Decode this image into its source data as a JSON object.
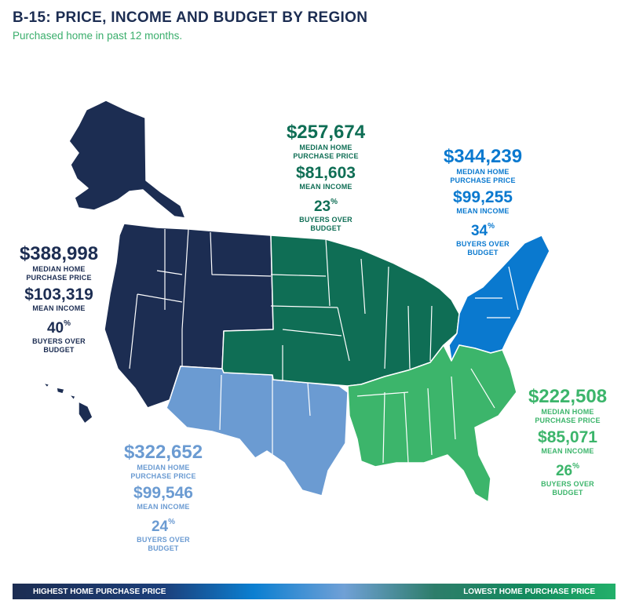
{
  "header": {
    "title": "B-15: PRICE, INCOME AND BUDGET BY REGION",
    "subtitle": "Purchased home in past 12 months."
  },
  "colors": {
    "west": "#1c2d52",
    "southwest": "#6b9bd2",
    "midwest": "#0f6e55",
    "northeast": "#0a79cf",
    "south": "#3cb56b",
    "title": "#1c2d52"
  },
  "regions": {
    "west": {
      "price": "$388,998",
      "price_label_1": "MEDIAN HOME",
      "price_label_2": "PURCHASE PRICE",
      "income": "$103,319",
      "income_label": "MEAN INCOME",
      "pct": "40",
      "pct_sign": "%",
      "pct_label_1": "BUYERS OVER",
      "pct_label_2": "BUDGET"
    },
    "midwest": {
      "price": "$257,674",
      "price_label_1": "MEDIAN HOME",
      "price_label_2": "PURCHASE PRICE",
      "income": "$81,603",
      "income_label": "MEAN INCOME",
      "pct": "23",
      "pct_sign": "%",
      "pct_label_1": "BUYERS OVER",
      "pct_label_2": "BUDGET"
    },
    "northeast": {
      "price": "$344,239",
      "price_label_1": "MEDIAN HOME",
      "price_label_2": "PURCHASE PRICE",
      "income": "$99,255",
      "income_label": "MEAN INCOME",
      "pct": "34",
      "pct_sign": "%",
      "pct_label_1": "BUYERS OVER",
      "pct_label_2": "BUDGET"
    },
    "southwest": {
      "price": "$322,652",
      "price_label_1": "MEDIAN HOME",
      "price_label_2": "PURCHASE PRICE",
      "income": "$99,546",
      "income_label": "MEAN INCOME",
      "pct": "24",
      "pct_sign": "%",
      "pct_label_1": "BUYERS OVER",
      "pct_label_2": "BUDGET"
    },
    "south": {
      "price": "$222,508",
      "price_label_1": "MEDIAN HOME",
      "price_label_2": "PURCHASE PRICE",
      "income": "$85,071",
      "income_label": "MEAN INCOME",
      "pct": "26",
      "pct_sign": "%",
      "pct_label_1": "BUYERS OVER",
      "pct_label_2": "BUDGET"
    }
  },
  "legend": {
    "left_label": "HIGHEST HOME PURCHASE PRICE",
    "right_label": "LOWEST HOME PURCHASE PRICE"
  }
}
